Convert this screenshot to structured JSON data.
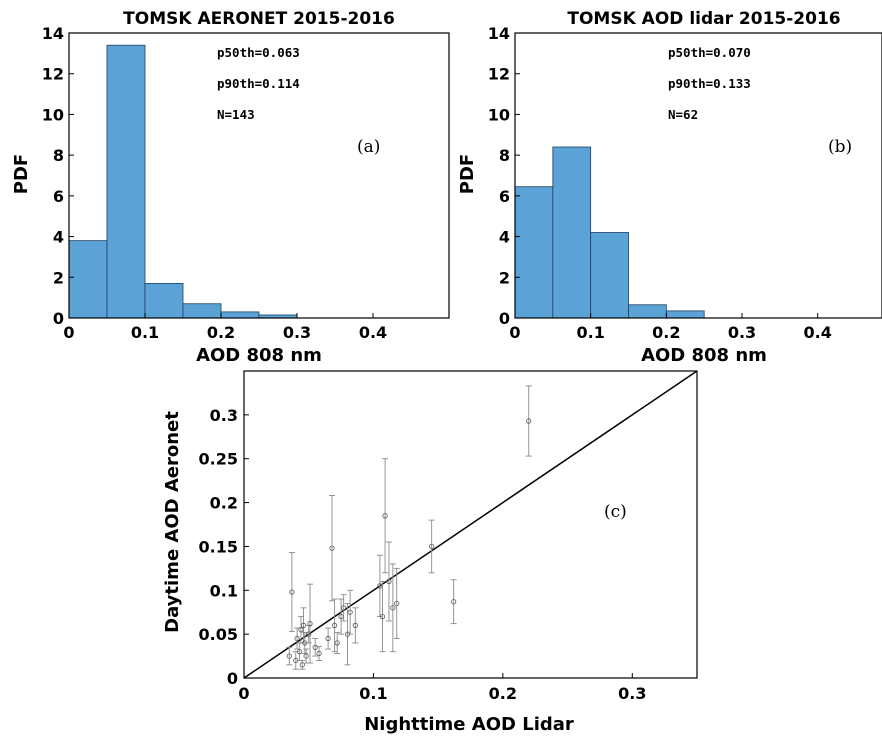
{
  "colors": {
    "bar_fill": "#5ba3d6",
    "axis": "#000000",
    "points": "#555555"
  },
  "chart_data": [
    {
      "type": "bar",
      "panel": "a",
      "title": "TOMSK AERONET 2015-2016",
      "xlabel": "AOD 808 nm",
      "ylabel": "PDF",
      "bin_edges": [
        0,
        0.05,
        0.1,
        0.15,
        0.2,
        0.25,
        0.3
      ],
      "values": [
        3.8,
        13.4,
        1.7,
        0.7,
        0.3,
        0.15
      ],
      "xlim": [
        0,
        0.5
      ],
      "ylim": [
        0,
        14
      ],
      "xticks": [
        "0",
        "0.1",
        "0.2",
        "0.3",
        "0.4"
      ],
      "yticks": [
        "0",
        "2",
        "4",
        "6",
        "8",
        "10",
        "12",
        "14"
      ],
      "annotations": [
        "p50th=0.063",
        "p90th=0.114",
        "N=143"
      ],
      "panel_tag": "(a)"
    },
    {
      "type": "bar",
      "panel": "b",
      "title": "TOMSK AOD lidar 2015-2016",
      "xlabel": "AOD 808 nm",
      "ylabel": "PDF",
      "bin_edges": [
        0,
        0.05,
        0.1,
        0.15,
        0.2,
        0.25
      ],
      "values": [
        6.45,
        8.4,
        4.2,
        0.65,
        0.35
      ],
      "xlim": [
        0,
        0.5
      ],
      "ylim": [
        0,
        14
      ],
      "xticks": [
        "0",
        "0.1",
        "0.2",
        "0.3",
        "0.4"
      ],
      "yticks": [
        "0",
        "2",
        "4",
        "6",
        "8",
        "10",
        "12",
        "14"
      ],
      "annotations": [
        "p50th=0.070",
        "p90th=0.133",
        "N=62"
      ],
      "panel_tag": "(b)"
    },
    {
      "type": "scatter",
      "panel": "c",
      "xlabel": "Nighttime AOD Lidar",
      "ylabel": "Daytime AOD Aeronet",
      "xlim": [
        0,
        0.35
      ],
      "ylim": [
        0,
        0.35
      ],
      "xticks": [
        "0",
        "0.1",
        "0.2",
        "0.3"
      ],
      "yticks": [
        "0",
        "0.05",
        "0.1",
        "0.15",
        "0.2",
        "0.25",
        "0.3"
      ],
      "fit_line": [
        [
          0,
          0
        ],
        [
          0.35,
          0.35
        ]
      ],
      "panel_tag": "(c)",
      "points": [
        {
          "x": 0.035,
          "y": 0.025,
          "err": 0.01
        },
        {
          "x": 0.037,
          "y": 0.098,
          "err": 0.045
        },
        {
          "x": 0.04,
          "y": 0.02,
          "err": 0.01
        },
        {
          "x": 0.041,
          "y": 0.045,
          "err": 0.012
        },
        {
          "x": 0.043,
          "y": 0.03,
          "err": 0.01
        },
        {
          "x": 0.044,
          "y": 0.055,
          "err": 0.015
        },
        {
          "x": 0.045,
          "y": 0.015,
          "err": 0.005
        },
        {
          "x": 0.046,
          "y": 0.06,
          "err": 0.02
        },
        {
          "x": 0.047,
          "y": 0.04,
          "err": 0.012
        },
        {
          "x": 0.048,
          "y": 0.025,
          "err": 0.008
        },
        {
          "x": 0.05,
          "y": 0.05,
          "err": 0.01
        },
        {
          "x": 0.051,
          "y": 0.062,
          "err": 0.045
        },
        {
          "x": 0.055,
          "y": 0.035,
          "err": 0.01
        },
        {
          "x": 0.058,
          "y": 0.028,
          "err": 0.008
        },
        {
          "x": 0.065,
          "y": 0.045,
          "err": 0.012
        },
        {
          "x": 0.068,
          "y": 0.148,
          "err": 0.06
        },
        {
          "x": 0.07,
          "y": 0.06,
          "err": 0.03
        },
        {
          "x": 0.072,
          "y": 0.04,
          "err": 0.012
        },
        {
          "x": 0.075,
          "y": 0.07,
          "err": 0.02
        },
        {
          "x": 0.077,
          "y": 0.08,
          "err": 0.015
        },
        {
          "x": 0.08,
          "y": 0.05,
          "err": 0.035
        },
        {
          "x": 0.082,
          "y": 0.075,
          "err": 0.025
        },
        {
          "x": 0.086,
          "y": 0.06,
          "err": 0.02
        },
        {
          "x": 0.105,
          "y": 0.105,
          "err": 0.035
        },
        {
          "x": 0.107,
          "y": 0.07,
          "err": 0.04
        },
        {
          "x": 0.109,
          "y": 0.185,
          "err": 0.065
        },
        {
          "x": 0.112,
          "y": 0.11,
          "err": 0.045
        },
        {
          "x": 0.115,
          "y": 0.08,
          "err": 0.05
        },
        {
          "x": 0.118,
          "y": 0.085,
          "err": 0.04
        },
        {
          "x": 0.145,
          "y": 0.15,
          "err": 0.03
        },
        {
          "x": 0.162,
          "y": 0.087,
          "err": 0.025
        },
        {
          "x": 0.22,
          "y": 0.293,
          "err": 0.04
        }
      ]
    }
  ]
}
